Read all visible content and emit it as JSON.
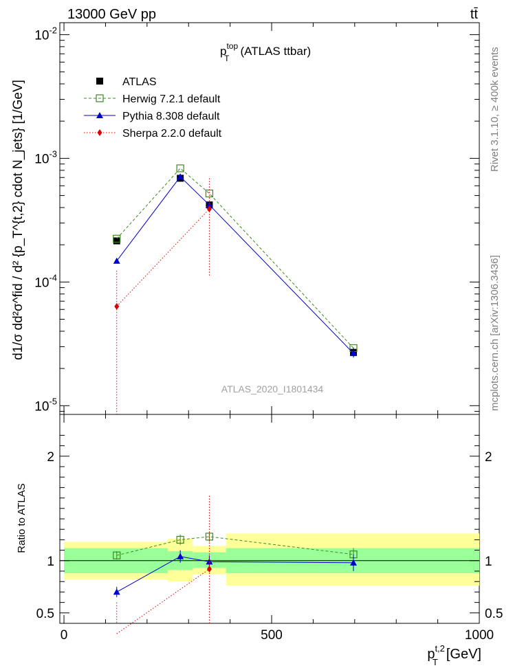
{
  "header": {
    "left": "13000 GeV pp",
    "right": "tt̄"
  },
  "side_labels": {
    "rivet": "Rivet 3.1.10, ≥ 400k events",
    "mcplots": "mcplots.cern.ch [arXiv:1306.3436]"
  },
  "watermark": "ATLAS_2020_I1801434",
  "main_title": {
    "base": "p",
    "sup": "top",
    "sub": "T",
    "suffix": "(ATLAS ttbar)"
  },
  "labels": {
    "ylabel_main": "d1/σ dd²σ^fid / d² {p_T^{t,2} cdot N_jets} [1/GeV]",
    "ylabel_ratio": "Ratio to ATLAS",
    "xlabel_base": "p",
    "xlabel_sup": "t,2",
    "xlabel_sub": "T",
    "xlabel_unit": "[GeV]"
  },
  "legend": [
    {
      "name": "ATLAS",
      "color": "#000000",
      "marker": "square-filled"
    },
    {
      "name": "Herwig 7.2.1 default",
      "color": "#3a8a1e",
      "marker": "square-open"
    },
    {
      "name": "Pythia 8.308 default",
      "color": "#0000cc",
      "marker": "triangle"
    },
    {
      "name": "Sherpa 2.2.0 default",
      "color": "#dd0000",
      "marker": "diamond"
    }
  ],
  "chart_data": {
    "type": "line",
    "x_scale": "linear",
    "y_scale": "log",
    "xlim": [
      -10,
      1000
    ],
    "ylim": [
      8.5e-06,
      0.0125
    ],
    "x_ticks": [
      0,
      500,
      1000
    ],
    "y_ticks": [
      {
        "value": 0.01,
        "base": "10",
        "exp": "-2"
      },
      {
        "value": 0.001,
        "base": "10",
        "exp": "-3"
      },
      {
        "value": 0.0001,
        "base": "10",
        "exp": "-4"
      },
      {
        "value": 1e-05,
        "base": "10",
        "exp": "-5"
      }
    ],
    "reference": {
      "name": "ATLAS",
      "bins": [
        {
          "lo": 0,
          "hi": 250,
          "x": 127,
          "y": 0.000215,
          "band_inner": [
            0.88,
            1.12
          ],
          "band_outer": [
            0.82,
            1.18
          ]
        },
        {
          "lo": 250,
          "hi": 310,
          "x": 280,
          "y": 0.00069,
          "band_inner": [
            0.91,
            1.09
          ],
          "band_outer": [
            0.8,
            1.21
          ]
        },
        {
          "lo": 310,
          "hi": 390,
          "x": 350,
          "y": 0.00042,
          "band_inner": [
            0.93,
            1.08
          ],
          "band_outer": [
            0.87,
            1.14
          ]
        },
        {
          "lo": 390,
          "hi": 1000,
          "x": 697,
          "y": 2.7e-05,
          "band_inner": [
            0.88,
            1.12
          ],
          "band_outer": [
            0.76,
            1.26
          ]
        }
      ],
      "yerr_lo": [
        1e-05,
        3e-05,
        2e-05,
        2.5e-06
      ],
      "yerr_hi": [
        1e-05,
        3e-05,
        2e-05,
        2.5e-06
      ]
    },
    "series": [
      {
        "name": "Herwig 7.2.1 default",
        "x": [
          127,
          280,
          350,
          697
        ],
        "y": [
          0.000224,
          0.00083,
          0.00052,
          2.92e-05
        ],
        "ratio": [
          1.05,
          1.2,
          1.23,
          1.06
        ],
        "ratio_err": [
          0.04,
          0.05,
          0.05,
          0.06
        ]
      },
      {
        "name": "Pythia 8.308 default",
        "x": [
          127,
          280,
          350,
          697
        ],
        "y": [
          0.000148,
          0.00071,
          0.00042,
          2.65e-05
        ],
        "ratio": [
          0.7,
          1.04,
          0.99,
          0.98
        ],
        "ratio_err": [
          0.05,
          0.06,
          0.06,
          0.08
        ]
      },
      {
        "name": "Sherpa 2.2.0 default",
        "x": [
          127,
          350
        ],
        "y": [
          6.35e-05,
          0.00039
        ],
        "ratio": [
          0.3,
          0.92
        ],
        "y_err_lo": [
          6e-05,
          0.00028
        ],
        "y_err_hi": [
          6e-05,
          0.0003
        ],
        "ratio_err_lo": [
          0.3,
          0.6
        ],
        "ratio_err_hi": [
          0.3,
          0.7
        ]
      }
    ],
    "ratio_panel": {
      "ylim": [
        0.4,
        2.4
      ],
      "ylabel": "Ratio to ATLAS",
      "y_ticks": [
        {
          "value": 0.5,
          "label": "0.5"
        },
        {
          "value": 1,
          "label": "1"
        },
        {
          "value": 2,
          "label": "2"
        }
      ]
    }
  },
  "colors": {
    "atlas": "#000000",
    "herwig": "#3a8a1e",
    "pythia": "#0000cc",
    "sherpa": "#dd0000",
    "band_inner": "#99ff99",
    "band_outer": "#ffff99"
  }
}
